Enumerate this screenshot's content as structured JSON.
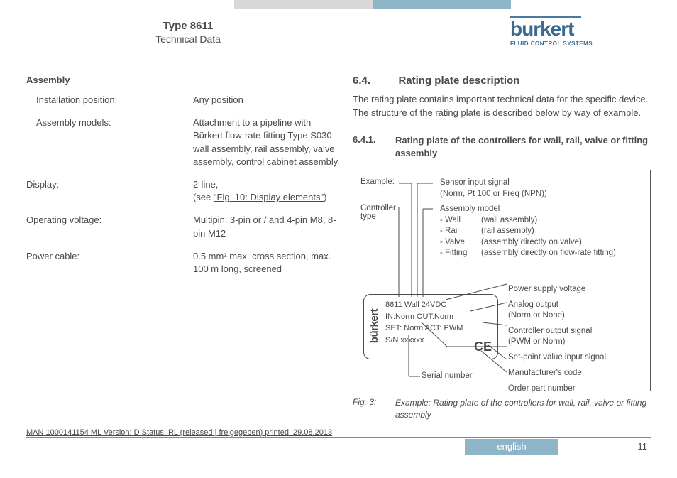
{
  "header": {
    "title": "Type 8611",
    "subtitle": "Technical Data"
  },
  "logo": {
    "brand": "burkert",
    "tagline": "FLUID CONTROL SYSTEMS"
  },
  "left": {
    "section": "Assembly",
    "rows": [
      {
        "k": "Installation position:",
        "v": "Any position",
        "indent": true
      },
      {
        "k": "Assembly models:",
        "v": "Attachment to a pipeline with Bürkert flow-rate fitting Type S030\nwall assembly, rail assembly, valve assembly, control cabinet assembly",
        "indent": true
      },
      {
        "k": "Display:",
        "v": "2-line,\n(see ",
        "link": "\"Fig. 10: Display elements\"",
        "after": ")",
        "indent": false
      },
      {
        "k": "Operating voltage:",
        "v": "Multipin: 3-pin or / and 4-pin M8, 8-pin M12",
        "indent": false
      },
      {
        "k": "Power cable:",
        "v": "0.5 mm² max. cross section, max. 100 m long, screened",
        "indent": false
      }
    ]
  },
  "right": {
    "sec_num": "6.4.",
    "sec_title": "Rating plate description",
    "para": "The rating plate contains important technical data for the specific device. The structure of the rating plate is described below by way of example.",
    "sub_num": "6.4.1.",
    "sub_title": "Rating plate of the controllers for wall, rail, valve or fitting assembly",
    "diagram": {
      "example_label": "Example:",
      "controller_label": "Controller\ntype",
      "sensor_desc": "Sensor input signal\n(Norm, Pt 100 or Freq (NPN))",
      "assy_title": "Assembly model",
      "assy": [
        {
          "a": "- Wall",
          "b": "(wall assembly)"
        },
        {
          "a": "- Rail",
          "b": "(rail assembly)"
        },
        {
          "a": "- Valve",
          "b": "(assembly directly on valve)"
        },
        {
          "a": "- Fitting",
          "b": "(assembly directly on flow-rate fitting)"
        }
      ],
      "plate_brand": "bürkert",
      "plate_lines": [
        "8611  Wall  24VDC",
        "IN:Norm        OUT:Norm",
        "SET: Norm   ACT: PWM",
        "S/N xxxxxx"
      ],
      "right_labels": [
        "Power supply voltage",
        "Analog output\n(Norm or None)",
        "Controller output signal\n(PWM or Norm)",
        "Set-point value input signal",
        "Manufacturer's code",
        "Order part number"
      ],
      "serial_label": "Serial number"
    },
    "fig_num": "Fig. 3:",
    "fig_text": "Example: Rating plate of the controllers for wall, rail, valve or fitting assembly"
  },
  "footer": {
    "meta": "MAN 1000141154 ML Version: D Status: RL (released | freigegeben) printed: 29.08.2013",
    "lang": "english",
    "page": "11"
  },
  "colors": {
    "accent": "#8db4c7",
    "gray_bar": "#d8d8d8",
    "logo": "#3a6a90"
  }
}
